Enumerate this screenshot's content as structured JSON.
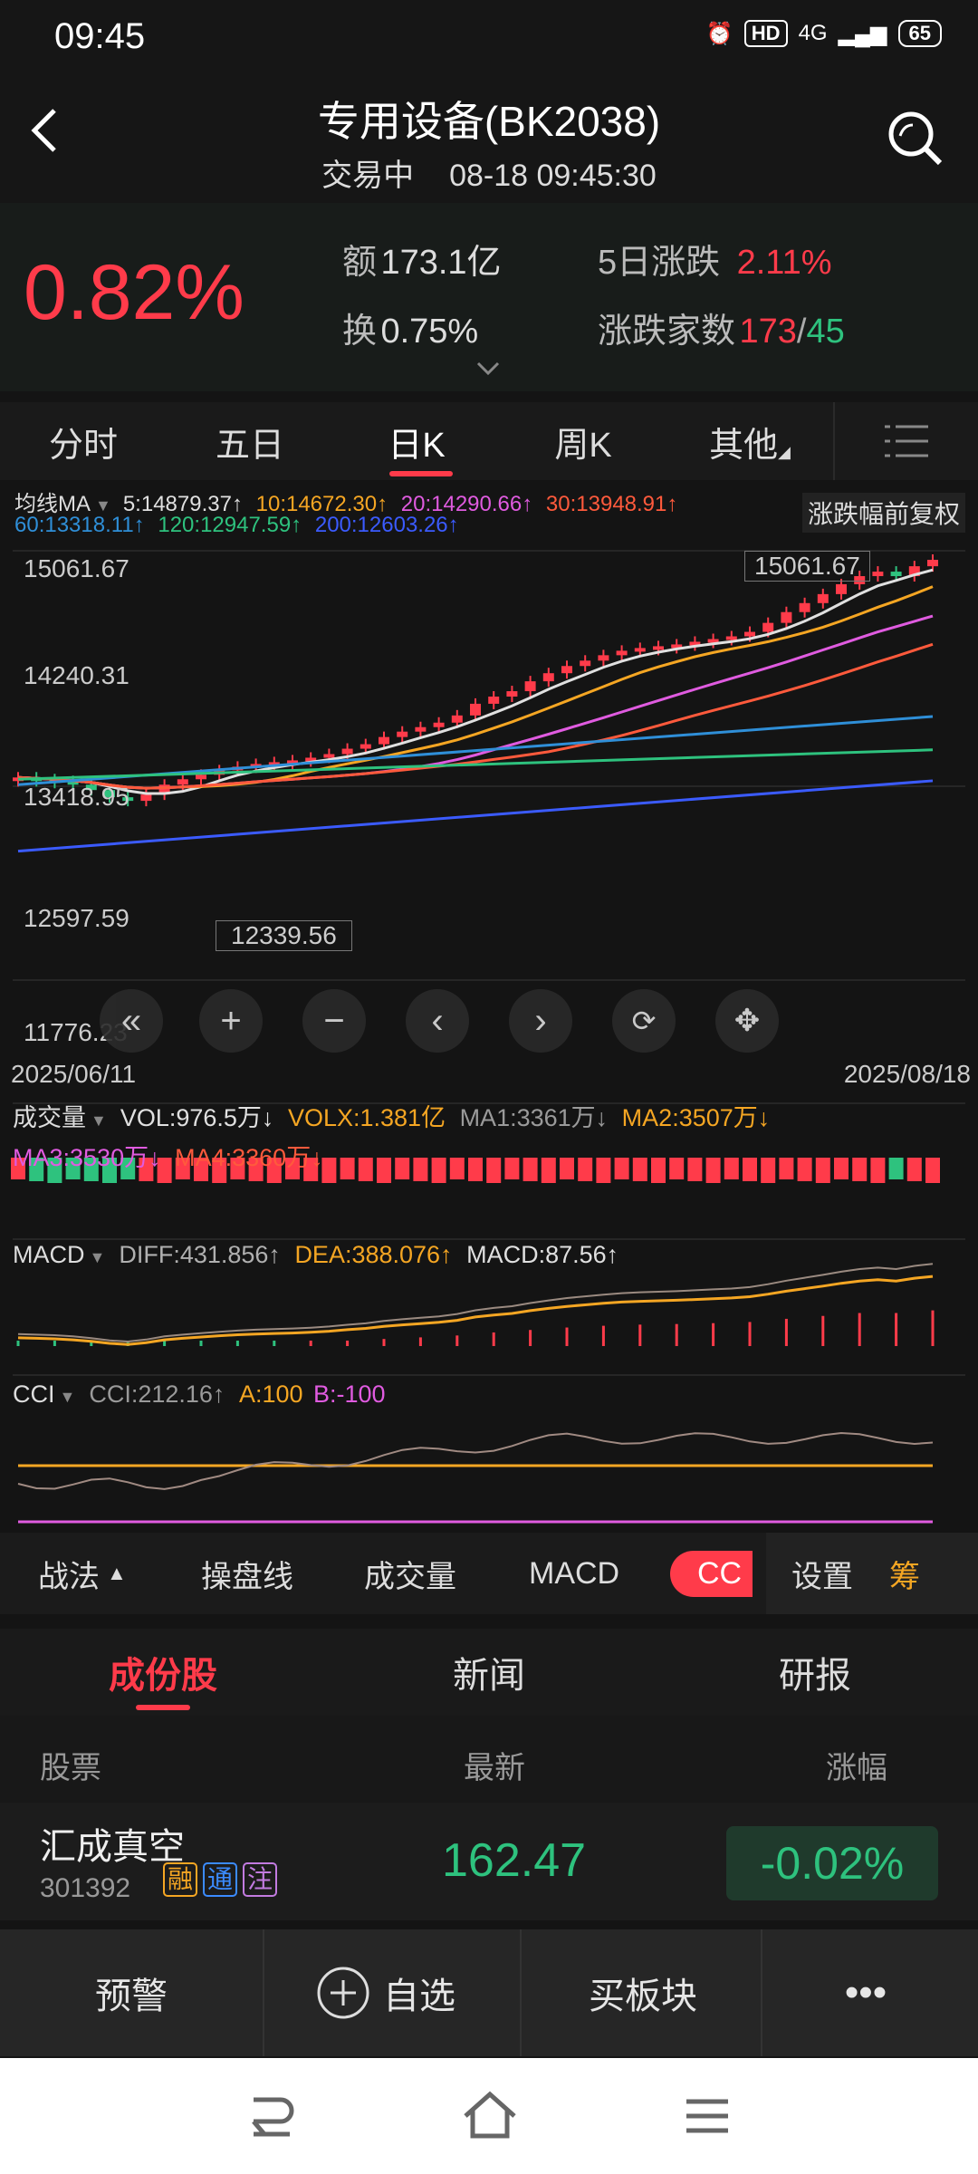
{
  "status_bar": {
    "time": "09:45",
    "battery": "65",
    "network": "4G",
    "hd": "HD"
  },
  "header": {
    "title": "专用设备(BK2038)",
    "status": "交易中",
    "datetime": "08-18 09:45:30"
  },
  "quote": {
    "change_pct": "0.82%",
    "amount_label": "额",
    "amount_value": "173.1亿",
    "turnover_label": "换",
    "turnover_value": "0.75%",
    "five_day_label": "5日涨跌",
    "five_day_value": "2.11%",
    "adv_dec_label": "涨跌家数",
    "advances": "173",
    "slash": "/",
    "declines": "45"
  },
  "chart_tabs": [
    "分时",
    "五日",
    "日K",
    "周K",
    "其他"
  ],
  "chart": {
    "ma_label": "均线MA",
    "ma_values": [
      {
        "text": "5:14879.37↑",
        "color": "#e0e0e0"
      },
      {
        "text": "10:14672.30↑",
        "color": "#f5a623"
      },
      {
        "text": "20:14290.66↑",
        "color": "#e05be0"
      },
      {
        "text": "30:13948.91↑",
        "color": "#ff5a3c"
      },
      {
        "text": "60:13318.11↑",
        "color": "#2f8fd8"
      },
      {
        "text": "120:12947.59↑",
        "color": "#2ec27e"
      },
      {
        "text": "200:12603.26↑",
        "color": "#3b5bff"
      }
    ],
    "adjust_label": "涨跌幅前复权",
    "y_ticks": [
      "15061.67",
      "14240.31",
      "13418.95",
      "12597.59",
      "11776.23"
    ],
    "high_label": "15061.67",
    "low_label": "12339.56",
    "date_start": "2025/06/11",
    "date_end": "2025/08/18"
  },
  "chart_data": {
    "type": "line",
    "title": "",
    "x_range": [
      "2025/06/11",
      "2025/08/18"
    ],
    "ylim": [
      11776.23,
      15061.67
    ],
    "high": 15061.67,
    "low": 12339.56,
    "close_series_approx": [
      12640,
      12620,
      12600,
      12560,
      12500,
      12420,
      12380,
      12450,
      12560,
      12620,
      12670,
      12720,
      12760,
      12790,
      12810,
      12830,
      12860,
      12900,
      12960,
      13010,
      13090,
      13150,
      13200,
      13250,
      13330,
      13460,
      13540,
      13600,
      13710,
      13800,
      13880,
      13940,
      14000,
      14050,
      14080,
      14100,
      14120,
      14150,
      14180,
      14210,
      14260,
      14360,
      14480,
      14580,
      14680,
      14790,
      14880,
      14930,
      14880,
      14990,
      15061.67
    ]
  },
  "volume": {
    "label": "成交量",
    "items": [
      {
        "text": "VOL:976.5万↓",
        "color": "#e0e0e0"
      },
      {
        "text": "VOLX:1.381亿",
        "color": "#f5a623"
      },
      {
        "text": "MA1:3361万↓",
        "color": "#9a9a9a"
      },
      {
        "text": "MA2:3507万↓",
        "color": "#f5a623"
      },
      {
        "text": "MA3:3530万↓",
        "color": "#e05be0"
      },
      {
        "text": "MA4:3360万↓",
        "color": "#ff5a3c"
      }
    ]
  },
  "macd": {
    "label": "MACD",
    "items": [
      {
        "text": "DIFF:431.856↑",
        "color": "#b0b0b0"
      },
      {
        "text": "DEA:388.076↑",
        "color": "#f5a623"
      },
      {
        "text": "MACD:87.56↑",
        "color": "#e0e0e0"
      }
    ]
  },
  "cci": {
    "label": "CCI",
    "items": [
      {
        "text": "CCI:212.16↑",
        "color": "#9a9a9a"
      },
      {
        "text": "A:100",
        "color": "#f5a623"
      },
      {
        "text": "B:-100",
        "color": "#e05be0"
      }
    ]
  },
  "toolbar": {
    "strategy": "战法",
    "items": [
      "操盘线",
      "成交量",
      "MACD"
    ],
    "active": "CC",
    "settings": "设置",
    "chips": "筹"
  },
  "sections": [
    "成份股",
    "新闻",
    "研报"
  ],
  "list_header": {
    "stock": "股票",
    "latest": "最新",
    "change": "涨幅"
  },
  "stock": {
    "name": "汇成真空",
    "code": "301392",
    "badges": [
      "融",
      "通",
      "注"
    ],
    "price": "162.47",
    "change": "-0.02%"
  },
  "actions": {
    "alert": "预警",
    "watchlist": "自选",
    "buy_block": "买板块",
    "more": "•••"
  },
  "colors": {
    "up": "#ff3b4a",
    "down": "#2ec27e",
    "bg": "#141414"
  }
}
